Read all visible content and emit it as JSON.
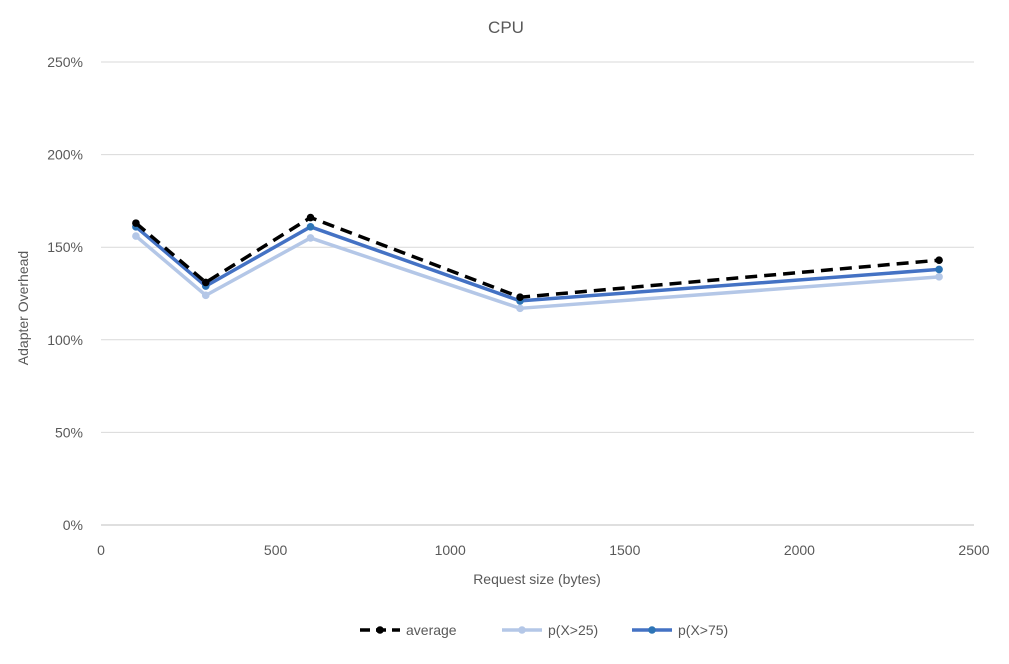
{
  "chart_data": {
    "type": "line",
    "title": "CPU",
    "xlabel": "Request size (bytes)",
    "ylabel": "Adapter Overhead",
    "xlim": [
      0,
      2500
    ],
    "ylim": [
      0,
      2.5
    ],
    "xticks": [
      0,
      500,
      1000,
      1500,
      2000,
      2500
    ],
    "yticks": [
      0,
      0.5,
      1.0,
      1.5,
      2.0,
      2.5
    ],
    "xtick_labels": [
      "0",
      "500",
      "1000",
      "1500",
      "2000",
      "2500"
    ],
    "ytick_labels": [
      "0%",
      "50%",
      "100%",
      "150%",
      "200%",
      "250%"
    ],
    "y_format": "percent",
    "grid": "horizontal",
    "legend_position": "bottom",
    "x": [
      100,
      300,
      600,
      1200,
      2400
    ],
    "series": [
      {
        "name": "average",
        "values": [
          1.63,
          1.31,
          1.66,
          1.23,
          1.43
        ],
        "color": "#000000",
        "style": "dashed"
      },
      {
        "name": "p(X>25)",
        "values": [
          1.56,
          1.24,
          1.55,
          1.17,
          1.34
        ],
        "color": "#b4c7e7",
        "style": "solid"
      },
      {
        "name": "p(X>75)",
        "values": [
          1.61,
          1.29,
          1.61,
          1.21,
          1.38
        ],
        "color": "#4472c4",
        "marker_color": "#2e75b6",
        "style": "solid"
      }
    ]
  }
}
